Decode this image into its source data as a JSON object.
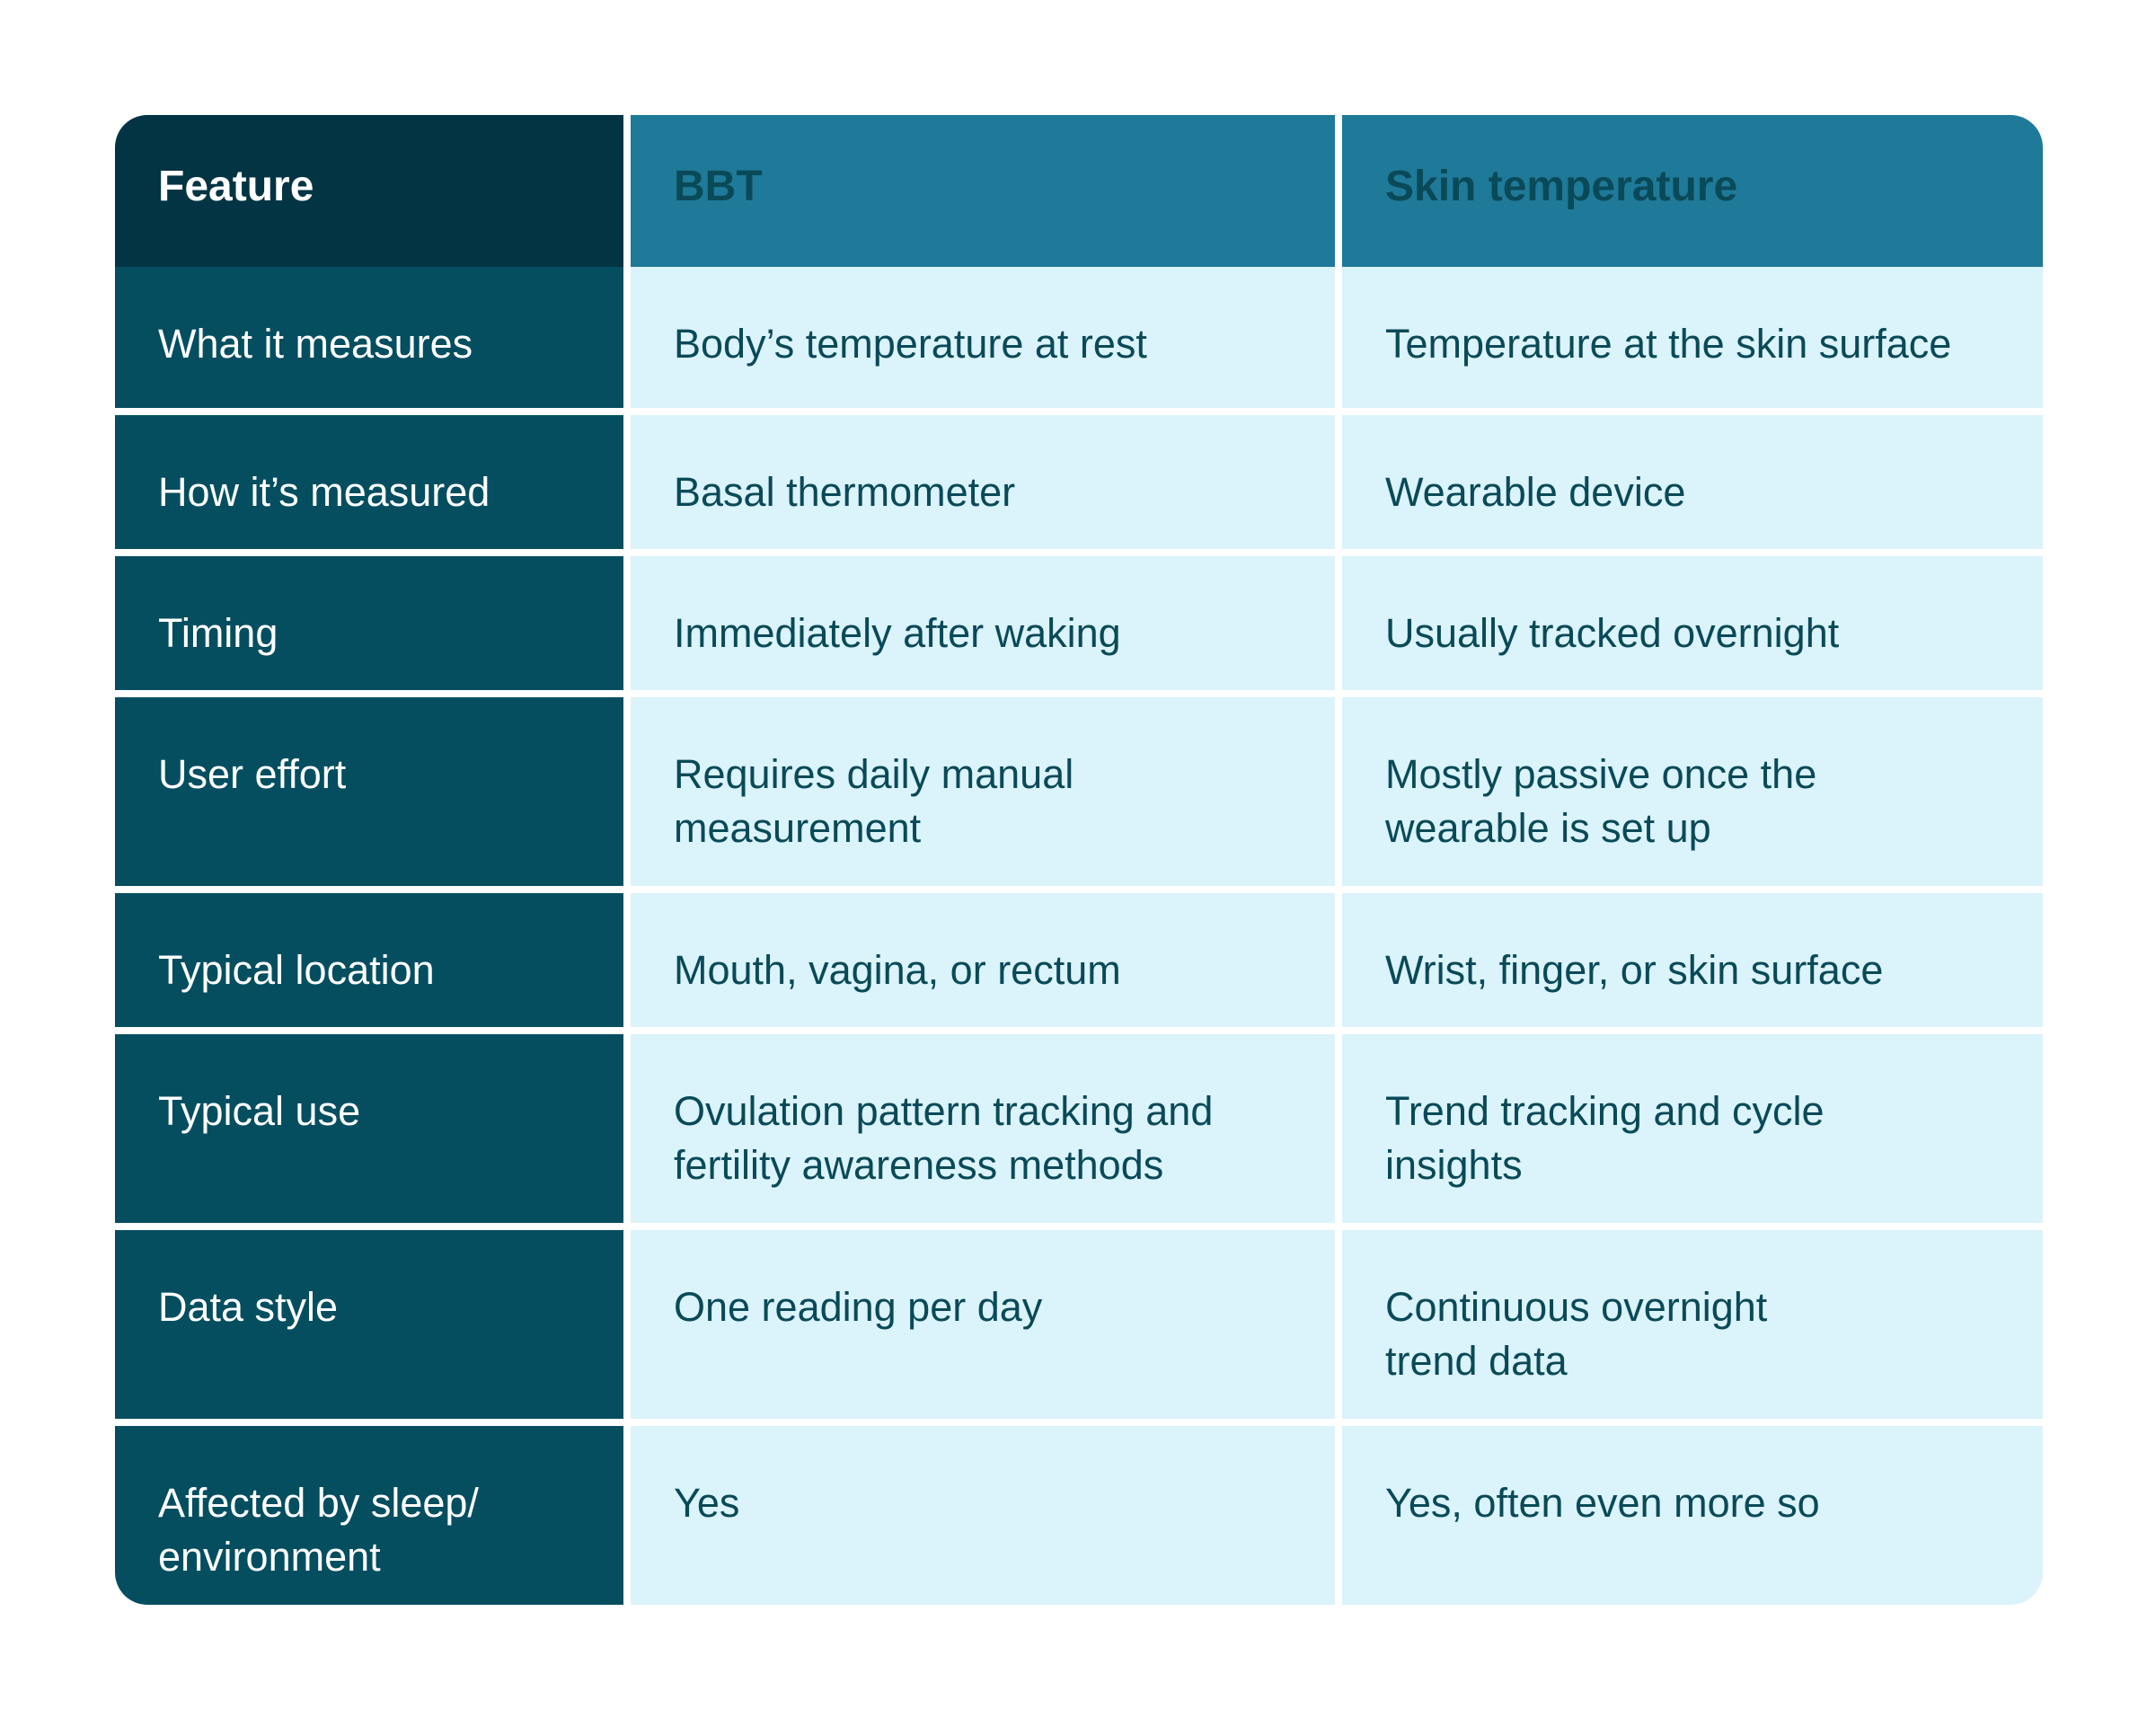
{
  "table": {
    "headers": [
      "Feature",
      "BBT",
      "Skin temperature"
    ],
    "rows": [
      {
        "feature": "What it measures",
        "bbt": "Body’s temperature at rest",
        "skin": "Temperature at the skin surface"
      },
      {
        "feature": "How it’s measured",
        "bbt": "Basal thermometer",
        "skin": "Wearable device"
      },
      {
        "feature": "Timing",
        "bbt": "Immediately after waking",
        "skin": "Usually tracked overnight"
      },
      {
        "feature": "User effort",
        "bbt": "Requires daily manual\nmeasurement",
        "skin": "Mostly passive once the\nwearable is set up"
      },
      {
        "feature": "Typical location",
        "bbt": "Mouth, vagina, or rectum",
        "skin": "Wrist, finger, or skin surface"
      },
      {
        "feature": "Typical use",
        "bbt": "Ovulation pattern tracking and\nfertility awareness methods",
        "skin": "Trend tracking and cycle\ninsights"
      },
      {
        "feature": "Data style",
        "bbt": "One reading per day",
        "skin": "Continuous overnight\ntrend data"
      },
      {
        "feature": "Affected by sleep/\nenvironment",
        "bbt": "Yes",
        "skin": "Yes, often even more so"
      }
    ]
  },
  "colors": {
    "feature_header_bg": "#023443",
    "column_header_bg": "#1f7a99",
    "feature_cell_bg": "#044e60",
    "value_cell_bg": "#dbf3fb",
    "value_text": "#0a4a58"
  }
}
